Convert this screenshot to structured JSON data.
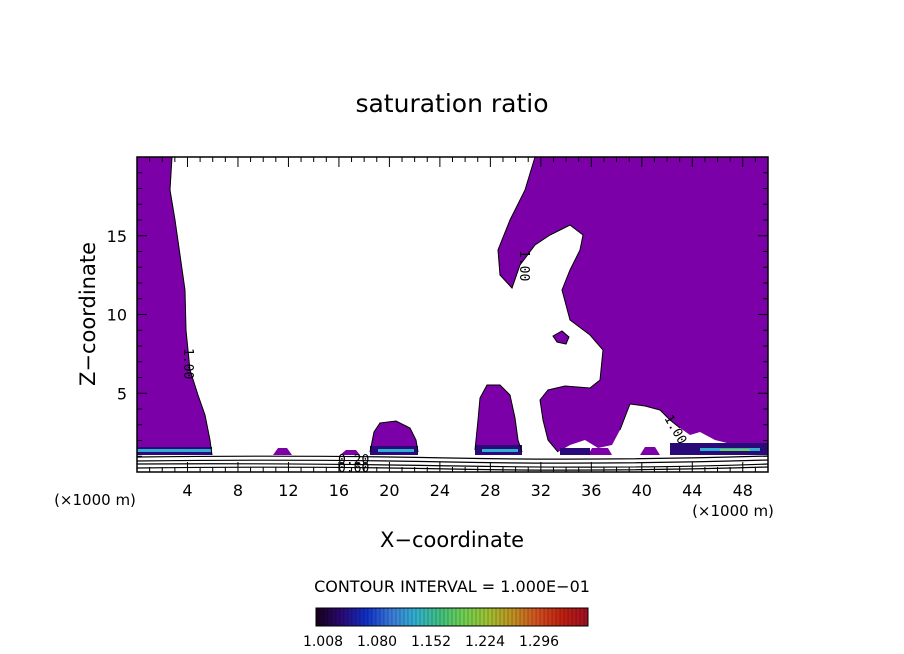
{
  "chart_data": {
    "type": "heatmap",
    "title": "saturation ratio",
    "xlabel": "X−coordinate",
    "ylabel": "Z−coordinate",
    "x_unit_left": "(×1000 m)",
    "x_unit_right": "(×1000 m)",
    "xlim": [
      0,
      50
    ],
    "ylim": [
      0,
      20
    ],
    "x_ticks": [
      4,
      8,
      12,
      16,
      20,
      24,
      28,
      32,
      36,
      40,
      44,
      48
    ],
    "y_ticks": [
      5,
      10,
      15
    ],
    "contour_interval_text": "CONTOUR INTERVAL = 1.000E−01",
    "colorbar": {
      "tick_labels": [
        "1.008",
        "1.080",
        "1.152",
        "1.224",
        "1.296"
      ],
      "colors": [
        "#1a0020",
        "#2a0a78",
        "#1030c8",
        "#3a7ad8",
        "#30b0d0",
        "#40c080",
        "#70d050",
        "#a0c030",
        "#c09020",
        "#d05020",
        "#c02010",
        "#a01020"
      ]
    },
    "fill_color": "#7b00a8",
    "contour_labels": [
      "1.00",
      "1.00",
      "1.00",
      "0.20",
      "0.60"
    ],
    "grid": false,
    "legend": "bottom"
  }
}
